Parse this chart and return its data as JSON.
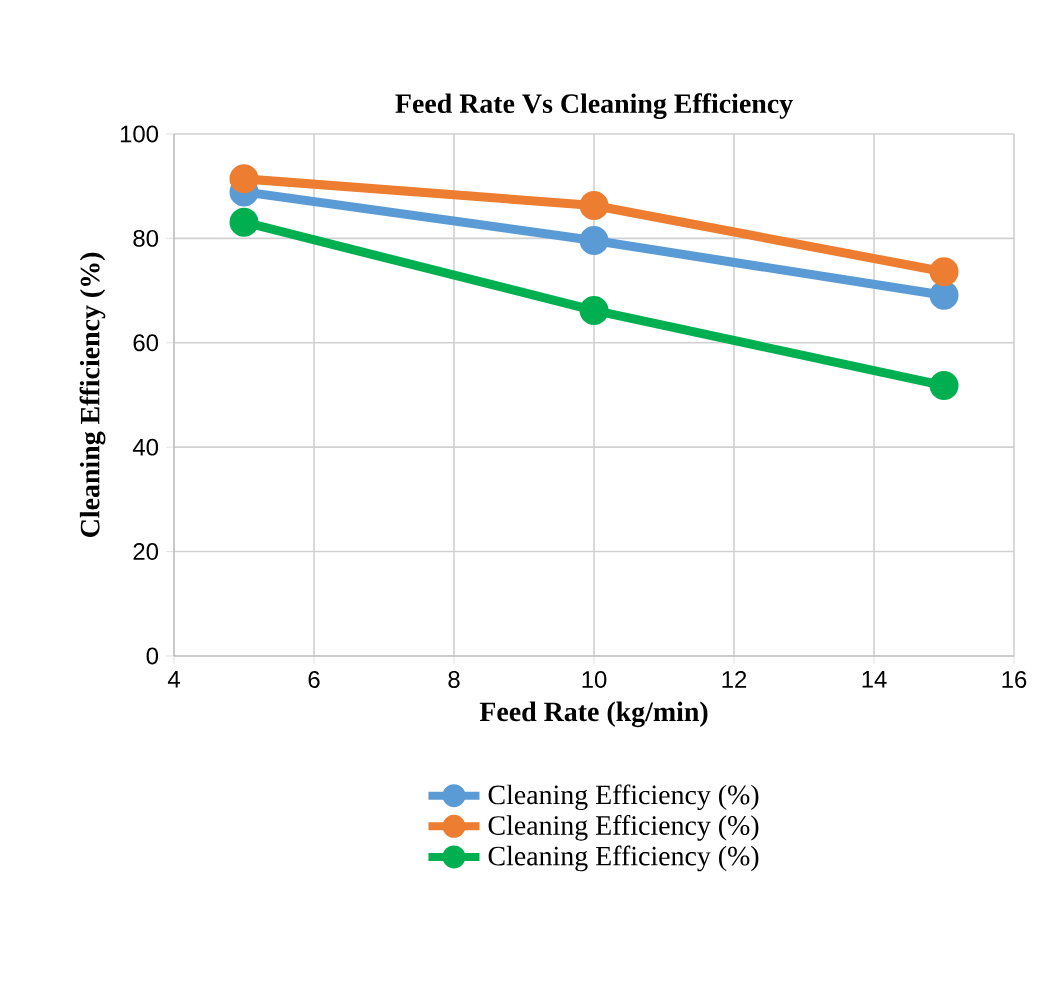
{
  "chart_data": {
    "type": "line",
    "title": "Feed Rate Vs Cleaning Efficiency",
    "xlabel": "Feed Rate (kg/min)",
    "ylabel": "Cleaning Efficiency (%)",
    "x": [
      5,
      10,
      15
    ],
    "series": [
      {
        "name": "Cleaning Efficiency (%)",
        "color": "#5b9bd5",
        "values": [
          88.9,
          79.6,
          69.1
        ]
      },
      {
        "name": "Cleaning Efficiency (%)",
        "color": "#ed7d31",
        "values": [
          91.4,
          86.3,
          73.6
        ]
      },
      {
        "name": "Cleaning Efficiency (%)",
        "color": "#00b050",
        "values": [
          83.1,
          66.2,
          51.8
        ]
      }
    ],
    "xlim": [
      4,
      16
    ],
    "xticks": [
      4,
      6,
      8,
      10,
      12,
      14,
      16
    ],
    "ylim": [
      0,
      100
    ],
    "yticks": [
      0,
      20,
      40,
      60,
      80,
      100
    ],
    "grid": true,
    "legend": "bottom",
    "marker": "circle",
    "line_style": "solid"
  }
}
